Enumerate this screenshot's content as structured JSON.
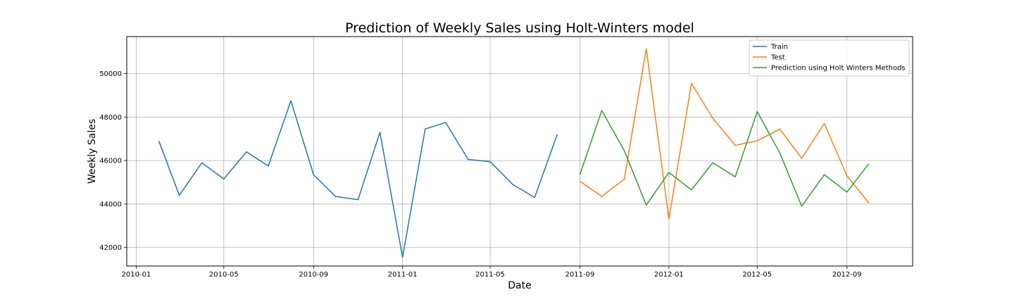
{
  "chart_data": {
    "type": "line",
    "title": "Prediction of Weekly Sales using Holt-Winters model",
    "xlabel": "Date",
    "ylabel": "Weekly Sales",
    "x_ticks": [
      "2010-01",
      "2010-05",
      "2010-09",
      "2011-01",
      "2011-05",
      "2011-09",
      "2012-01",
      "2012-05",
      "2012-09"
    ],
    "y_ticks": [
      42000,
      44000,
      46000,
      48000,
      50000
    ],
    "xlim": [
      "2009-12-19",
      "2012-11-30"
    ],
    "ylim": [
      41150,
      51700
    ],
    "grid": true,
    "legend_position": "top-right",
    "series": [
      {
        "name": "Train",
        "color": "#1f77b4",
        "x": [
          "2010-02-01",
          "2010-03-01",
          "2010-04-01",
          "2010-05-01",
          "2010-06-01",
          "2010-07-01",
          "2010-08-01",
          "2010-09-01",
          "2010-10-01",
          "2010-11-01",
          "2010-12-01",
          "2011-01-01",
          "2011-02-01",
          "2011-03-01",
          "2011-04-01",
          "2011-05-01",
          "2011-06-01",
          "2011-07-01",
          "2011-08-01"
        ],
        "values": [
          46900,
          44400,
          45900,
          45150,
          46400,
          45750,
          48750,
          45350,
          44350,
          44200,
          47300,
          41550,
          47450,
          47750,
          46050,
          45950,
          44900,
          44300,
          47200
        ]
      },
      {
        "name": "Test",
        "color": "#ff7f0e",
        "x": [
          "2011-09-01",
          "2011-10-01",
          "2011-11-01",
          "2011-12-01",
          "2012-01-01",
          "2012-02-01",
          "2012-03-01",
          "2012-04-01",
          "2012-05-01",
          "2012-06-01",
          "2012-07-01",
          "2012-08-01",
          "2012-09-01",
          "2012-10-01"
        ],
        "values": [
          45050,
          44350,
          45150,
          51150,
          43300,
          49550,
          47950,
          46700,
          46900,
          47450,
          46100,
          47700,
          45300,
          44050
        ]
      },
      {
        "name": "Prediction using Holt Winters Methods",
        "color": "#2ca02c",
        "x": [
          "2011-09-01",
          "2011-10-01",
          "2011-11-01",
          "2011-12-01",
          "2012-01-01",
          "2012-02-01",
          "2012-03-01",
          "2012-04-01",
          "2012-05-01",
          "2012-06-01",
          "2012-07-01",
          "2012-08-01",
          "2012-09-01",
          "2012-10-01"
        ],
        "values": [
          45350,
          48300,
          46450,
          43950,
          45450,
          44650,
          45900,
          45250,
          48250,
          46350,
          43900,
          45350,
          44550,
          45850
        ]
      }
    ]
  }
}
